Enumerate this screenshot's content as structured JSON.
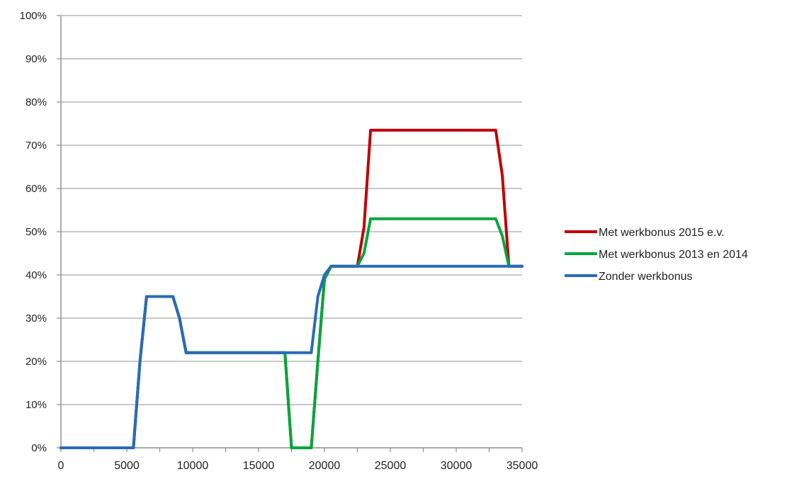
{
  "chart_data": {
    "type": "line",
    "title": "",
    "xlabel": "",
    "ylabel": "",
    "xlim": [
      0,
      35000
    ],
    "ylim": [
      0,
      100
    ],
    "grid": "horizontal",
    "legend_position": "right",
    "x_ticks": [
      {
        "value": 0,
        "label": "0"
      },
      {
        "value": 5000,
        "label": "5000"
      },
      {
        "value": 10000,
        "label": "10000"
      },
      {
        "value": 15000,
        "label": "15000"
      },
      {
        "value": 20000,
        "label": "20000"
      },
      {
        "value": 25000,
        "label": "25000"
      },
      {
        "value": 30000,
        "label": "30000"
      },
      {
        "value": 35000,
        "label": "35000"
      }
    ],
    "y_ticks": [
      {
        "value": 0,
        "label": "0%"
      },
      {
        "value": 10,
        "label": "10%"
      },
      {
        "value": 20,
        "label": "20%"
      },
      {
        "value": 30,
        "label": "30%"
      },
      {
        "value": 40,
        "label": "40%"
      },
      {
        "value": 50,
        "label": "50%"
      },
      {
        "value": 60,
        "label": "60%"
      },
      {
        "value": 70,
        "label": "70%"
      },
      {
        "value": 80,
        "label": "80%"
      },
      {
        "value": 90,
        "label": "90%"
      },
      {
        "value": 100,
        "label": "100%"
      }
    ],
    "series": [
      {
        "name": "Met werkbonus 2015 e.v.",
        "color": "#c00000",
        "x": [
          0,
          5500,
          6000,
          6500,
          8500,
          9000,
          9500,
          17000,
          17500,
          18000,
          18500,
          19000,
          19500,
          20000,
          20500,
          22500,
          23000,
          23500,
          33000,
          33500,
          34000,
          35000
        ],
        "y": [
          0,
          0,
          20,
          35,
          35,
          30,
          22,
          22,
          0,
          0,
          0,
          0,
          20,
          39,
          42,
          42,
          51,
          73.5,
          73.5,
          63,
          42,
          42
        ]
      },
      {
        "name": "Met werkbonus 2013 en 2014",
        "color": "#00a63c",
        "x": [
          0,
          5500,
          6000,
          6500,
          8500,
          9000,
          9500,
          17000,
          17500,
          18000,
          18500,
          19000,
          19500,
          20000,
          20500,
          22500,
          23000,
          23500,
          33000,
          33500,
          34000,
          35000
        ],
        "y": [
          0,
          0,
          20,
          35,
          35,
          30,
          22,
          22,
          0,
          0,
          0,
          0,
          20,
          39,
          42,
          42,
          45,
          53,
          53,
          49,
          42,
          42
        ]
      },
      {
        "name": "Zonder werkbonus",
        "color": "#2b6ab8",
        "x": [
          0,
          5500,
          6000,
          6500,
          8500,
          9000,
          9500,
          17000,
          18500,
          19000,
          19500,
          20000,
          20500,
          35000
        ],
        "y": [
          0,
          0,
          20,
          35,
          35,
          30,
          22,
          22,
          22,
          22,
          35,
          40,
          42,
          42
        ]
      }
    ]
  }
}
